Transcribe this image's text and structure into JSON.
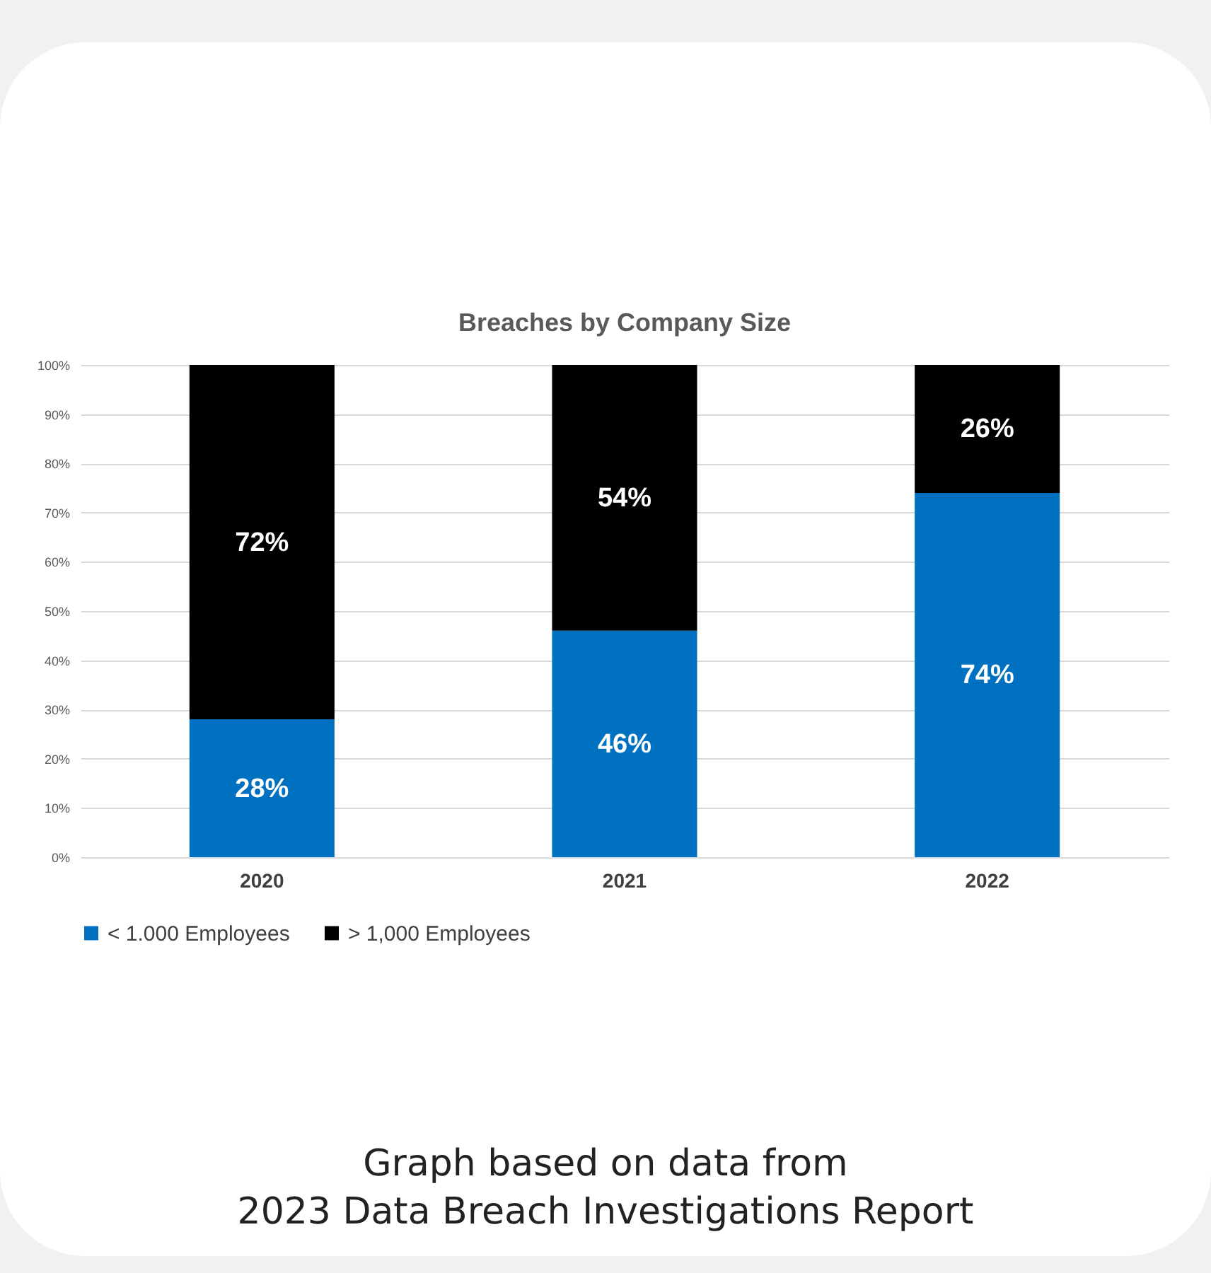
{
  "chart_data": {
    "type": "bar",
    "title": "Breaches by Company Size",
    "categories": [
      "2020",
      "2021",
      "2022"
    ],
    "series": [
      {
        "name": "< 1.000 Employees",
        "color": "#0070c0",
        "values": [
          28,
          46,
          74
        ],
        "value_labels": [
          "28%",
          "46%",
          "74%"
        ]
      },
      {
        "name": "> 1,000 Employees",
        "color": "#000000",
        "values": [
          72,
          54,
          26
        ],
        "value_labels": [
          "72%",
          "54%",
          "26%"
        ]
      }
    ],
    "stacked": true,
    "ylim": [
      0,
      100
    ],
    "yticks": [
      {
        "value": 0,
        "label": "0%"
      },
      {
        "value": 10,
        "label": "10%"
      },
      {
        "value": 20,
        "label": "20%"
      },
      {
        "value": 30,
        "label": "30%"
      },
      {
        "value": 40,
        "label": "40%"
      },
      {
        "value": 50,
        "label": "50%"
      },
      {
        "value": 60,
        "label": "60%"
      },
      {
        "value": 70,
        "label": "70%"
      },
      {
        "value": 80,
        "label": "80%"
      },
      {
        "value": 90,
        "label": "90%"
      },
      {
        "value": 100,
        "label": "100%"
      }
    ],
    "grid": "y",
    "legend": "bottom",
    "annotations": [
      "Graph based on data from",
      "2023 Data Breach Investigations Report"
    ]
  }
}
